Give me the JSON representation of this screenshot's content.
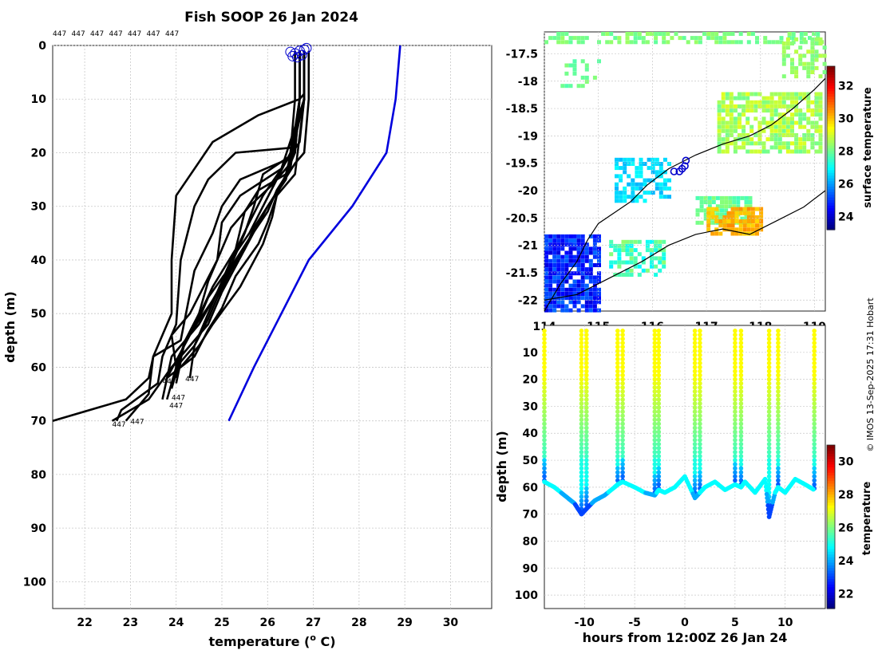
{
  "figure_title": "Fish SOOP 26 Jan 2024",
  "credit": "© IMOS 13-Sep-2025 17:31 Hobart",
  "vessel_id": "447",
  "chart_data": [
    {
      "id": "profiles",
      "type": "line",
      "title": "Fish SOOP 26 Jan 2024",
      "xlabel": "temperature (° C)",
      "xlabel_main": "temperature (",
      "xlabel_sup": "o",
      "xlabel_tail": " C)",
      "ylabel": "depth (m)",
      "xlim": [
        21.3,
        30.9
      ],
      "ylim": [
        105,
        0
      ],
      "xticks": [
        22,
        23,
        24,
        25,
        26,
        27,
        28,
        29,
        30
      ],
      "yticks": [
        0,
        10,
        20,
        30,
        40,
        50,
        60,
        70,
        80,
        90,
        100
      ],
      "grid": true,
      "top_labels": [
        "447",
        "447",
        "447",
        "447",
        "447",
        "447",
        "447"
      ],
      "bottom_labels": [
        "447",
        "447",
        "447",
        "447",
        "447",
        "447"
      ],
      "climatology": {
        "name": "climatology",
        "color": "#0000dd",
        "x": [
          28.9,
          28.8,
          28.6,
          27.85,
          26.9,
          26.3,
          25.7,
          25.15
        ],
        "y": [
          0,
          10,
          20,
          30,
          40,
          50,
          60,
          70
        ]
      },
      "profiles": [
        {
          "x": [
            26.8,
            26.8,
            26.8,
            26.7,
            25.8,
            24.8,
            24.0,
            23.9,
            23.9,
            23.5,
            23.4,
            22.9,
            21.3
          ],
          "y": [
            1,
            5,
            9,
            10,
            13,
            18,
            28,
            40,
            50,
            58,
            62,
            66,
            70
          ]
        },
        {
          "x": [
            26.7,
            26.7,
            26.6,
            25.3,
            24.7,
            24.4,
            24.1,
            24.0,
            23.7,
            23.6,
            22.8,
            22.7
          ],
          "y": [
            1,
            10,
            19,
            20,
            25,
            30,
            40,
            52,
            58,
            63,
            68,
            70
          ]
        },
        {
          "x": [
            26.7,
            26.7,
            26.5,
            25.4,
            25.0,
            24.8,
            24.4,
            24.1,
            23.5,
            23.4,
            22.9
          ],
          "y": [
            1,
            10,
            21,
            25,
            30,
            35,
            42,
            55,
            58,
            65,
            70
          ]
        },
        {
          "x": [
            26.8,
            26.8,
            26.3,
            25.4,
            25.0,
            24.9,
            24.3,
            23.9,
            24.0
          ],
          "y": [
            1,
            10,
            23,
            28,
            33,
            40,
            50,
            54,
            60
          ]
        },
        {
          "x": [
            26.7,
            26.7,
            26.5,
            26.1,
            25.6,
            25.2,
            24.7,
            24.5,
            24.2,
            24.0
          ],
          "y": [
            1,
            10,
            22,
            26,
            30,
            34,
            44,
            50,
            55,
            62
          ]
        },
        {
          "x": [
            26.8,
            26.8,
            26.4,
            25.8,
            25.5,
            25.3,
            24.8,
            24.3,
            23.8
          ],
          "y": [
            1,
            10,
            24,
            27,
            31,
            38,
            45,
            54,
            62
          ]
        },
        {
          "x": [
            26.7,
            26.7,
            26.6,
            25.9,
            25.7,
            25.5,
            25.2,
            24.7,
            24.5,
            24.2,
            23.9
          ],
          "y": [
            1,
            10,
            20,
            24,
            30,
            35,
            41,
            47,
            51,
            55,
            64
          ]
        },
        {
          "x": [
            26.8,
            26.8,
            26.6,
            26.2,
            26.0,
            25.8,
            25.3,
            25.0,
            24.7,
            24.4,
            24.1
          ],
          "y": [
            1,
            10,
            24,
            28,
            33,
            37,
            43,
            49,
            53,
            58,
            60
          ]
        },
        {
          "x": [
            26.8,
            26.8,
            26.7,
            26.3,
            25.9,
            25.6,
            25.2,
            24.9,
            24.5,
            23.9,
            23.7
          ],
          "y": [
            1,
            10,
            18,
            23,
            28,
            33,
            40,
            46,
            52,
            58,
            66
          ]
        },
        {
          "x": [
            26.6,
            26.6,
            26.5,
            26.2,
            25.9,
            25.6,
            25.2,
            25.0,
            24.6,
            24.2,
            24.0,
            23.8
          ],
          "y": [
            1,
            10,
            20,
            25,
            30,
            35,
            40,
            45,
            50,
            55,
            60,
            66
          ]
        },
        {
          "x": [
            26.7,
            26.7,
            26.5,
            26.2,
            26.0,
            25.6,
            25.3,
            24.9,
            24.6,
            24.4,
            24.3
          ],
          "y": [
            1,
            10,
            23,
            27,
            31,
            36,
            40,
            46,
            52,
            56,
            62
          ]
        },
        {
          "x": [
            26.8,
            26.8,
            26.4,
            26.0,
            25.7,
            25.5,
            25.2,
            24.9,
            24.7,
            24.4,
            24.1,
            24.0
          ],
          "y": [
            1,
            10,
            25,
            30,
            34,
            38,
            42,
            47,
            51,
            56,
            59,
            63
          ]
        },
        {
          "x": [
            26.9,
            26.9,
            26.8,
            26.6,
            26.3,
            26.0,
            25.5,
            25.0,
            24.7,
            24.3,
            23.9,
            23.4,
            22.6
          ],
          "y": [
            1,
            10,
            20,
            22,
            26,
            30,
            38,
            46,
            52,
            56,
            60,
            66,
            70
          ]
        },
        {
          "x": [
            26.7,
            26.7,
            26.6,
            26.4,
            26.2,
            26.1,
            25.9,
            25.4,
            24.8,
            24.5,
            24.1,
            23.8
          ],
          "y": [
            1,
            10,
            20,
            24,
            28,
            32,
            37,
            45,
            52,
            56,
            60,
            62
          ]
        }
      ],
      "surface_markers": {
        "color": "#0000cc",
        "x": [
          26.5,
          26.55,
          26.6,
          26.7,
          26.75,
          26.8,
          26.85,
          26.65
        ],
        "y": [
          1.2,
          2.0,
          1.5,
          1.0,
          1.8,
          0.8,
          0.5,
          2.2
        ]
      }
    },
    {
      "id": "map",
      "type": "heatmap",
      "title": "",
      "xlabel": "",
      "ylabel": "",
      "xlim": [
        114,
        119.2
      ],
      "ylim": [
        -22.2,
        -17.1
      ],
      "xticks": [
        114,
        115,
        116,
        117,
        118,
        119
      ],
      "yticks": [
        -17.5,
        -18,
        -18.5,
        -19,
        -19.5,
        -20,
        -20.5,
        -21,
        -21.5,
        -22
      ],
      "xtick_labels": [
        "114",
        "115",
        "116",
        "117",
        "118",
        "119"
      ],
      "ytick_labels": [
        "-17.5",
        "-18",
        "-18.5",
        "-19",
        "-19.5",
        "-20",
        "-20.5",
        "-21",
        "-21.5",
        "-22"
      ],
      "colorbar": {
        "label": "surface temperature",
        "range": [
          23.2,
          33.2
        ],
        "ticks": [
          24,
          26,
          28,
          30,
          32
        ]
      },
      "track": {
        "color": "#0000cc",
        "lon": [
          116.4,
          116.5,
          116.55,
          116.6,
          116.62
        ],
        "lat": [
          -19.65,
          -19.65,
          -19.6,
          -19.55,
          -19.45
        ]
      },
      "coastline": {
        "lon": [
          114.0,
          114.3,
          114.6,
          114.8,
          115.0,
          115.3,
          115.6,
          115.9,
          116.3,
          116.8,
          117.3,
          117.8,
          118.2,
          118.6,
          119.0,
          119.2
        ],
        "lat": [
          -22.2,
          -21.7,
          -21.3,
          -20.9,
          -20.6,
          -20.4,
          -20.2,
          -19.9,
          -19.6,
          -19.35,
          -19.15,
          -19.0,
          -18.8,
          -18.5,
          -18.15,
          -17.95
        ]
      }
    },
    {
      "id": "section",
      "type": "scatter",
      "title": "",
      "xlabel": "hours from 12:00Z 26 Jan 24",
      "ylabel": "depth (m)",
      "xlim": [
        -14,
        14
      ],
      "ylim": [
        105,
        0
      ],
      "xticks": [
        -10,
        -5,
        0,
        5,
        10
      ],
      "yticks": [
        10,
        20,
        30,
        40,
        50,
        60,
        70,
        80,
        90,
        100
      ],
      "colorbar": {
        "label": "temperature",
        "range": [
          21.1,
          31.0
        ],
        "ticks": [
          22,
          24,
          26,
          28,
          30
        ]
      },
      "casts": [
        {
          "t": -14.0,
          "bottom": 58
        },
        {
          "t": -10.3,
          "bottom": 70
        },
        {
          "t": -9.8,
          "bottom": 68
        },
        {
          "t": -6.7,
          "bottom": 60
        },
        {
          "t": -6.2,
          "bottom": 58
        },
        {
          "t": -3.0,
          "bottom": 63
        },
        {
          "t": -2.6,
          "bottom": 61
        },
        {
          "t": 1.0,
          "bottom": 64
        },
        {
          "t": 1.5,
          "bottom": 62
        },
        {
          "t": 5.0,
          "bottom": 59
        },
        {
          "t": 5.6,
          "bottom": 60
        },
        {
          "t": 8.4,
          "bottom": 71
        },
        {
          "t": 9.3,
          "bottom": 60
        },
        {
          "t": 12.9,
          "bottom": 61
        }
      ],
      "bottom_path": {
        "t": [
          -14,
          -13,
          -12,
          -11,
          -10.3,
          -9.8,
          -9,
          -8,
          -7,
          -6.7,
          -6.2,
          -5,
          -4,
          -3,
          -2.6,
          -2,
          -1,
          0,
          1,
          1.5,
          2,
          3,
          4,
          5,
          5.6,
          6,
          7,
          8,
          8.4,
          9,
          9.3,
          10,
          11,
          12,
          12.9
        ],
        "depth": [
          58,
          60,
          63,
          66,
          70,
          68,
          65,
          63,
          60,
          59,
          58,
          60,
          62,
          63,
          61,
          62,
          60,
          56,
          64,
          62,
          60,
          58,
          61,
          59,
          60,
          58,
          62,
          57,
          71,
          62,
          60,
          62,
          57,
          59,
          61
        ]
      }
    }
  ]
}
